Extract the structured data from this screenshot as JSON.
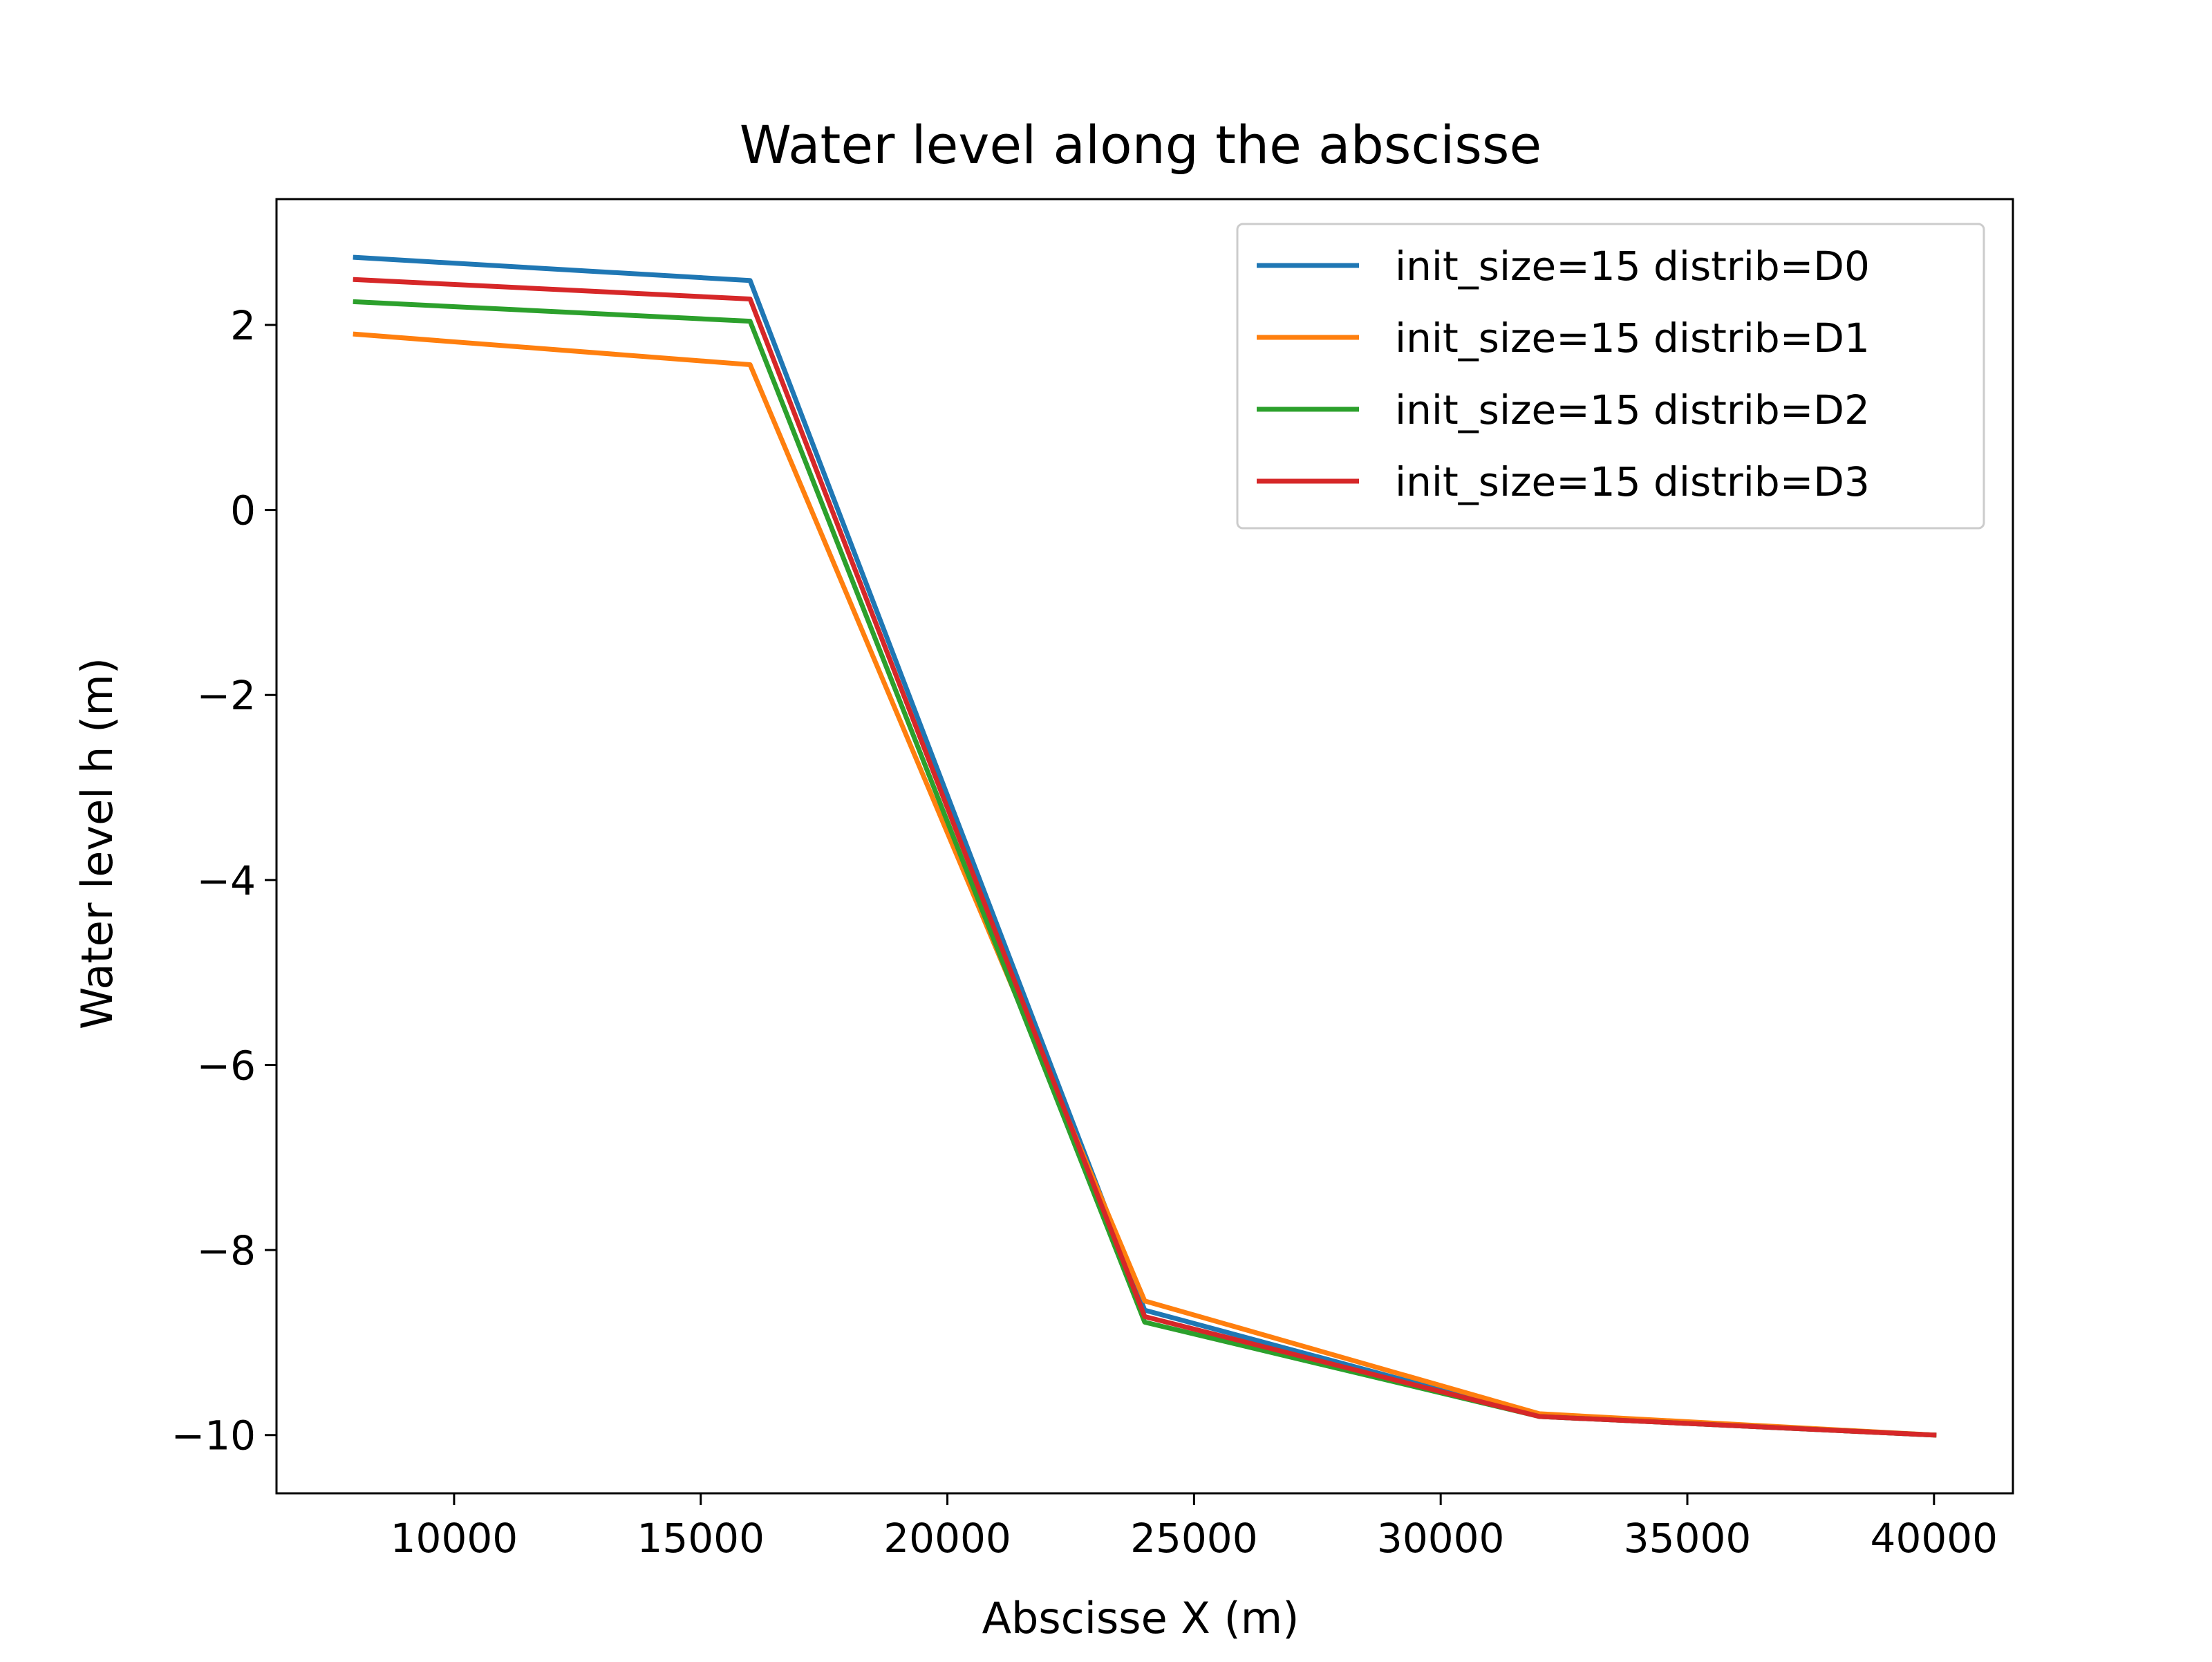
{
  "chart_data": {
    "type": "line",
    "title": "Water level along the abscisse",
    "xlabel": "Abscisse X (m)",
    "ylabel": "Water level h (m)",
    "xlim": [
      6400,
      41600
    ],
    "ylim": [
      -10.63,
      3.36
    ],
    "x_ticks": [
      10000,
      15000,
      20000,
      25000,
      30000,
      35000,
      40000
    ],
    "x_tick_labels": [
      "10000",
      "15000",
      "20000",
      "25000",
      "30000",
      "35000",
      "40000"
    ],
    "y_ticks": [
      2,
      0,
      -2,
      -4,
      -6,
      -8,
      -10
    ],
    "y_tick_labels": [
      "2",
      "0",
      "−2",
      "−4",
      "−6",
      "−8",
      "−10"
    ],
    "grid": false,
    "legend_position": "top-right",
    "x": [
      8000,
      16000,
      24000,
      32000,
      40000
    ],
    "series": [
      {
        "name": "init_size=15 distrib=D0",
        "color": "#1f77b4",
        "values": [
          2.73,
          2.48,
          -8.65,
          -9.8,
          -10.0
        ]
      },
      {
        "name": "init_size=15 distrib=D1",
        "color": "#ff7f0e",
        "values": [
          1.9,
          1.57,
          -8.55,
          -9.77,
          -10.0
        ]
      },
      {
        "name": "init_size=15 distrib=D2",
        "color": "#2ca02c",
        "values": [
          2.25,
          2.04,
          -8.78,
          -9.8,
          -10.0
        ]
      },
      {
        "name": "init_size=15 distrib=D3",
        "color": "#d62728",
        "values": [
          2.49,
          2.28,
          -8.72,
          -9.8,
          -10.0
        ]
      }
    ]
  }
}
